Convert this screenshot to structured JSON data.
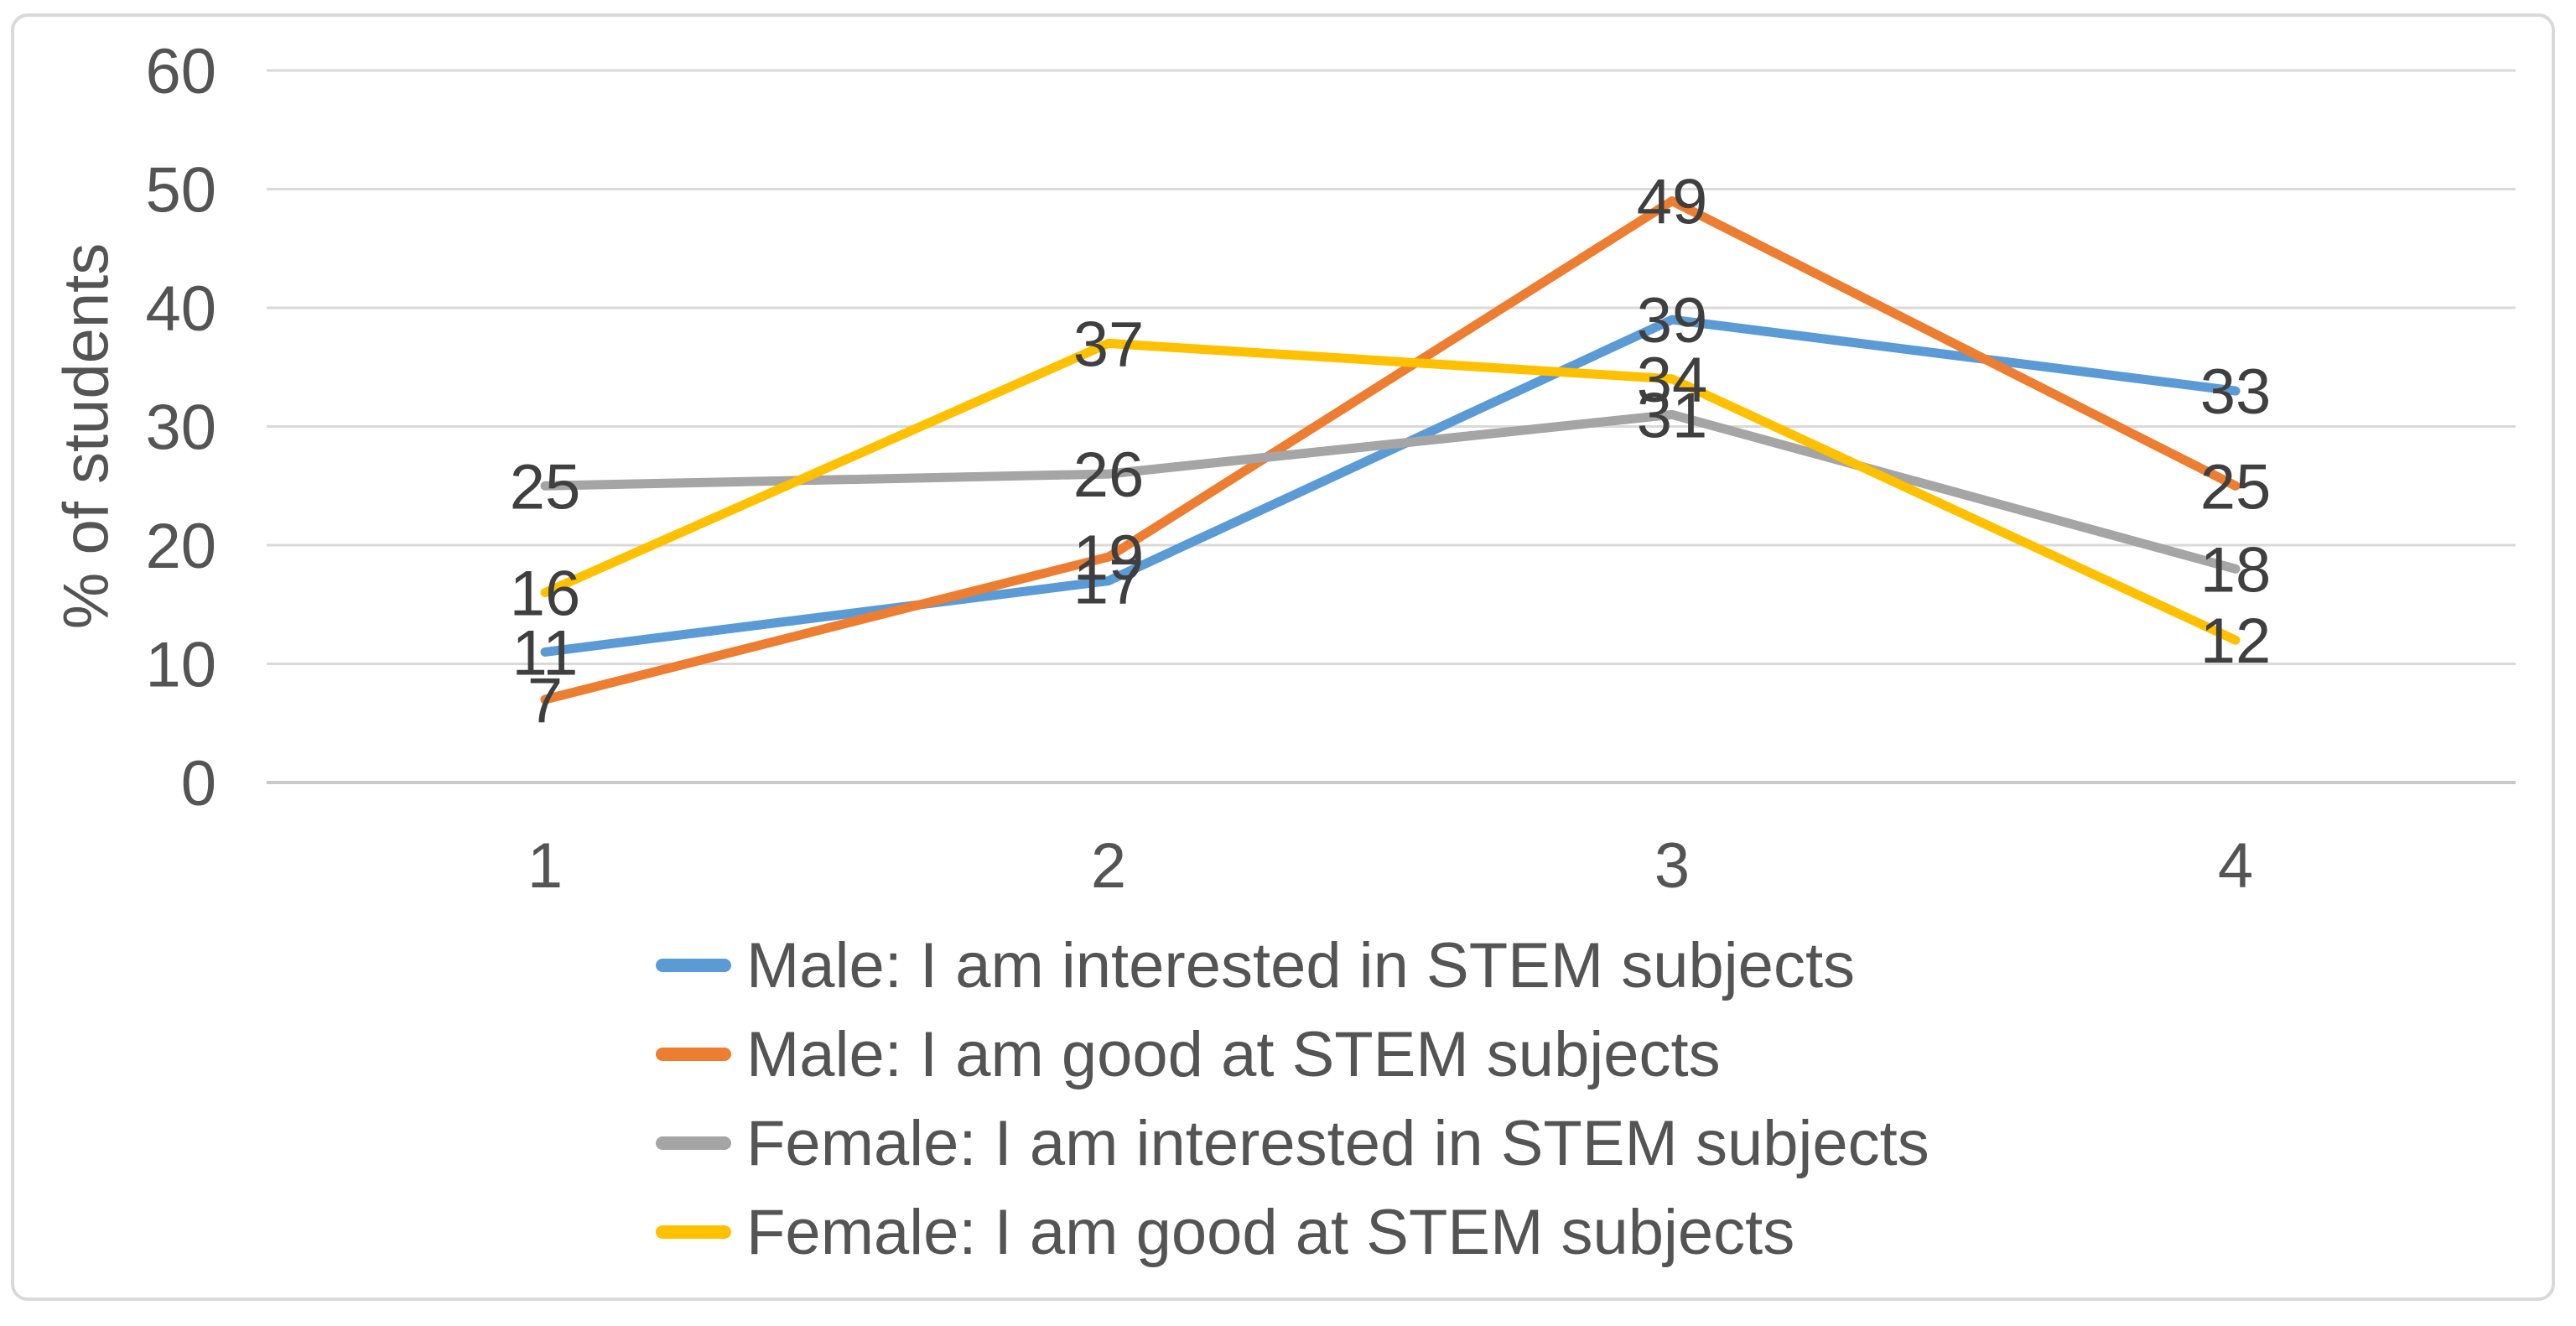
{
  "chart_data": {
    "type": "line",
    "title": "",
    "categories": [
      "1",
      "2",
      "3",
      "4"
    ],
    "series": [
      {
        "name": "Male: I am interested in STEM subjects",
        "color": "#5B9BD5",
        "values": [
          11,
          17,
          39,
          33
        ]
      },
      {
        "name": "Male: I am good at STEM subjects",
        "color": "#ED7D31",
        "values": [
          7,
          19,
          49,
          25
        ]
      },
      {
        "name": "Female: I am interested in STEM subjects",
        "color": "#A5A5A5",
        "values": [
          25,
          26,
          31,
          18
        ]
      },
      {
        "name": "Female: I am good at STEM subjects",
        "color": "#FFC000",
        "values": [
          16,
          37,
          34,
          12
        ]
      }
    ],
    "xlabel": "",
    "ylabel": "% of students",
    "y_ticks": [
      0,
      10,
      20,
      30,
      40,
      50,
      60
    ],
    "ylim": [
      0,
      60
    ],
    "grid": true,
    "legend_position": "bottom",
    "data_label_position": "center"
  },
  "style": {
    "gridline_color": "#D9D9D9",
    "axis_line_color": "#C8C8C8",
    "tick_text_color": "#545454",
    "data_label_color": "#3F3F3F",
    "border_color": "#D9D9D9",
    "background": "#FFFFFF"
  }
}
